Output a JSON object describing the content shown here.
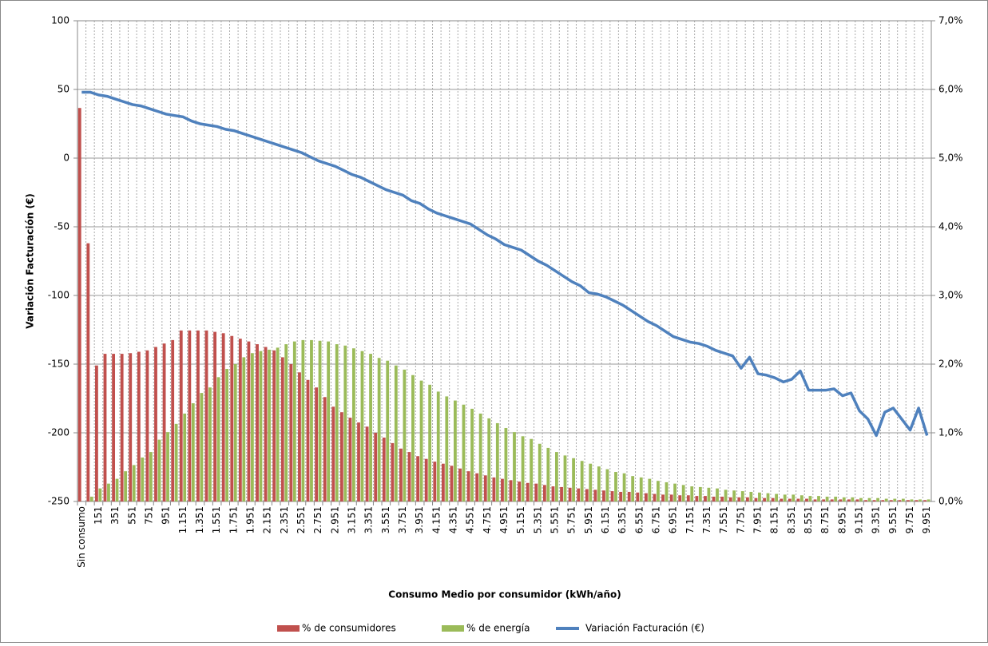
{
  "chart_data": {
    "type": "bar-line",
    "y_label": "Variación  Facturación  (€)",
    "x_label": "Consumo Medio por consumidor (kWh/año)",
    "categories": [
      "Sin consumo",
      null,
      "151",
      null,
      "351",
      null,
      "551",
      null,
      "751",
      null,
      "951",
      null,
      "1.151",
      null,
      "1.351",
      null,
      "1.551",
      null,
      "1.751",
      null,
      "1.951",
      null,
      "2.151",
      null,
      "2.351",
      null,
      "2.551",
      null,
      "2.751",
      null,
      "2.951",
      null,
      "3.151",
      null,
      "3.351",
      null,
      "3.551",
      null,
      "3.751",
      null,
      "3.951",
      null,
      "4.151",
      null,
      "4.351",
      null,
      "4.551",
      null,
      "4.751",
      null,
      "4.951",
      null,
      "5.151",
      null,
      "5.351",
      null,
      "5.551",
      null,
      "5.751",
      null,
      "5.951",
      null,
      "6.151",
      null,
      "6.351",
      null,
      "6.551",
      null,
      "6.751",
      null,
      "6.951",
      null,
      "7.151",
      null,
      "7.351",
      null,
      "7.551",
      null,
      "7.751",
      null,
      "7.951",
      null,
      "8.151",
      null,
      "8.351",
      null,
      "8.551",
      null,
      "8.751",
      null,
      "8.951",
      null,
      "9.151",
      null,
      "9.351",
      null,
      "9.551",
      null,
      "9.751",
      null,
      "9.951"
    ],
    "series": [
      {
        "name": "% de consumidores",
        "color": "#c0504d",
        "axis": "y2",
        "kind": "bar",
        "values": [
          5.73,
          3.76,
          1.98,
          2.15,
          2.15,
          2.15,
          2.16,
          2.18,
          2.2,
          2.25,
          2.3,
          2.35,
          2.49,
          2.49,
          2.49,
          2.49,
          2.47,
          2.45,
          2.41,
          2.37,
          2.33,
          2.29,
          2.25,
          2.2,
          2.1,
          2.0,
          1.88,
          1.77,
          1.66,
          1.52,
          1.38,
          1.3,
          1.22,
          1.15,
          1.09,
          1.0,
          0.93,
          0.85,
          0.77,
          0.72,
          0.66,
          0.62,
          0.58,
          0.55,
          0.52,
          0.48,
          0.44,
          0.41,
          0.38,
          0.35,
          0.33,
          0.31,
          0.29,
          0.27,
          0.26,
          0.24,
          0.22,
          0.21,
          0.2,
          0.19,
          0.18,
          0.17,
          0.16,
          0.15,
          0.14,
          0.14,
          0.13,
          0.12,
          0.11,
          0.1,
          0.1,
          0.09,
          0.09,
          0.08,
          0.08,
          0.07,
          0.07,
          0.06,
          0.06,
          0.06,
          0.05,
          0.05,
          0.05,
          0.04,
          0.04,
          0.04,
          0.04,
          0.03,
          0.03,
          0.03,
          0.03,
          0.03,
          0.03,
          0.02,
          0.02,
          0.02,
          0.02,
          0.02,
          0.02,
          0.02,
          0.02
        ]
      },
      {
        "name": "% de energía",
        "color": "#9bbb59",
        "axis": "y2",
        "kind": "bar",
        "values": [
          0,
          0.07,
          0.19,
          0.26,
          0.33,
          0.44,
          0.53,
          0.64,
          0.72,
          0.9,
          1.01,
          1.13,
          1.28,
          1.43,
          1.58,
          1.66,
          1.81,
          1.93,
          2.0,
          2.1,
          2.16,
          2.19,
          2.21,
          2.24,
          2.29,
          2.33,
          2.35,
          2.35,
          2.34,
          2.33,
          2.29,
          2.27,
          2.23,
          2.19,
          2.15,
          2.09,
          2.05,
          1.98,
          1.92,
          1.84,
          1.76,
          1.7,
          1.6,
          1.53,
          1.47,
          1.41,
          1.35,
          1.28,
          1.21,
          1.14,
          1.07,
          1.01,
          0.95,
          0.91,
          0.84,
          0.78,
          0.72,
          0.67,
          0.63,
          0.59,
          0.55,
          0.51,
          0.47,
          0.43,
          0.41,
          0.37,
          0.35,
          0.33,
          0.3,
          0.28,
          0.26,
          0.24,
          0.22,
          0.21,
          0.2,
          0.19,
          0.17,
          0.16,
          0.15,
          0.14,
          0.13,
          0.12,
          0.11,
          0.1,
          0.1,
          0.09,
          0.08,
          0.08,
          0.07,
          0.07,
          0.06,
          0.06,
          0.05,
          0.05,
          0.05,
          0.04,
          0.04,
          0.04,
          0.03,
          0.03,
          0.03
        ]
      },
      {
        "name": "Variación Facturación (€)",
        "color": "#4f81bd",
        "axis": "y",
        "kind": "line",
        "values": [
          48,
          48,
          46,
          45,
          43,
          41,
          39,
          38,
          36,
          34,
          32,
          31,
          30,
          27,
          25,
          24,
          23,
          21,
          20,
          18,
          16,
          14,
          12,
          10,
          8,
          6,
          4,
          1,
          -2,
          -4,
          -6,
          -9,
          -12,
          -14,
          -17,
          -20,
          -23,
          -25,
          -27,
          -31,
          -33,
          -37,
          -40,
          -42,
          -44,
          -46,
          -48,
          -52,
          -56,
          -59,
          -63,
          -65,
          -67,
          -71,
          -75,
          -78,
          -82,
          -86,
          -90,
          -93,
          -98,
          -99,
          -101,
          -104,
          -107,
          -111,
          -115,
          -119,
          -122,
          -126,
          -130,
          -132,
          -134,
          -135,
          -137,
          -140,
          -142,
          -144,
          -153,
          -145,
          -157,
          -158,
          -160,
          -163,
          -161,
          -155,
          -169,
          -169,
          -169,
          -168,
          -173,
          -171,
          -184,
          -190,
          -202,
          -185,
          -182,
          -190,
          -198,
          -182,
          -202
        ]
      }
    ],
    "ylim": [
      -250,
      100
    ],
    "yticks": [
      -250,
      -200,
      -150,
      -100,
      -50,
      0,
      50,
      100
    ],
    "y2lim": [
      0,
      7
    ],
    "y2ticks": [
      {
        "value": 0,
        "label": "0,0%"
      },
      {
        "value": 1,
        "label": "1,0%"
      },
      {
        "value": 2,
        "label": "2,0%"
      },
      {
        "value": 3,
        "label": "3,0%"
      },
      {
        "value": 4,
        "label": "4,0%"
      },
      {
        "value": 5,
        "label": "5,0%"
      },
      {
        "value": 6,
        "label": "6,0%"
      },
      {
        "value": 7,
        "label": "7,0%"
      }
    ],
    "grid": true,
    "legend": "bottom"
  }
}
